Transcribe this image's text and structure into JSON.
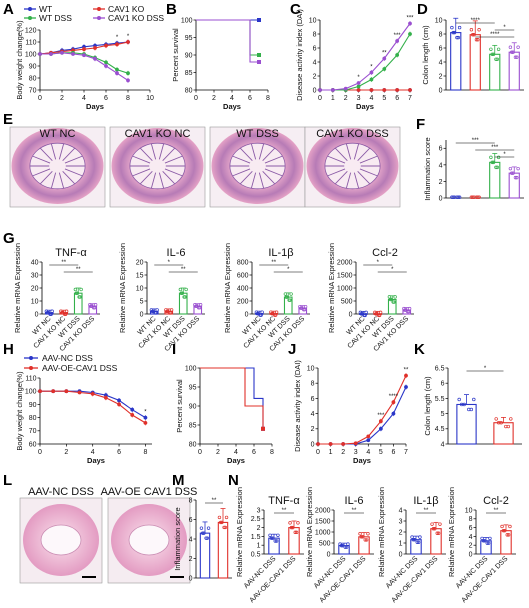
{
  "colors": {
    "wt": "#2a36c8",
    "cav1ko": "#e0302a",
    "wtdss": "#33b04a",
    "cav1kodss": "#9a4fd0",
    "aavnc": "#2a36c8",
    "aavoe": "#e0302a",
    "he_pink": "#e7a7c8",
    "he_purple": "#8a5aa6"
  },
  "panel_letters": {
    "A": "A",
    "B": "B",
    "C": "C",
    "D": "D",
    "E": "E",
    "F": "F",
    "G": "G",
    "H": "H",
    "I": "I",
    "J": "J",
    "K": "K",
    "L": "L",
    "M": "M",
    "N": "N"
  },
  "legend_top": {
    "wt": "WT",
    "wtdss": "WT DSS",
    "cav1ko": "CAV1 KO",
    "cav1kodss": "CAV1 KO DSS"
  },
  "legend_bottom": {
    "aavnc": "AAV-NC DSS",
    "aavoe": "AAV-OE-CAV1 DSS"
  },
  "histology_E": [
    "WT NC",
    "CAV1 KO NC",
    "WT DSS",
    "CAV1 KO DSS"
  ],
  "histology_L": [
    "AAV-NC DSS",
    "AAV-OE CAV1 DSS"
  ],
  "chart_data": [
    {
      "id": "A",
      "type": "line",
      "xlabel": "Days",
      "ylabel": "Body weight change(%)",
      "x": [
        0,
        1,
        2,
        3,
        4,
        5,
        6,
        7,
        8
      ],
      "xticks": [
        0,
        2,
        4,
        6,
        8,
        10
      ],
      "xlim": [
        0,
        10
      ],
      "yticks": [
        70,
        80,
        90,
        100,
        110,
        120
      ],
      "ylim": [
        70,
        120
      ],
      "significance": [
        "*",
        "*"
      ],
      "series": [
        {
          "name": "WT",
          "key": "wt",
          "values": [
            100,
            101,
            103,
            104,
            106,
            107,
            108,
            109,
            110
          ]
        },
        {
          "name": "CAV1 KO",
          "key": "cav1ko",
          "values": [
            100,
            101,
            102,
            103,
            104,
            105,
            107,
            108,
            110
          ]
        },
        {
          "name": "WT DSS",
          "key": "wtdss",
          "values": [
            100,
            100,
            101,
            101,
            100,
            97,
            93,
            87,
            84
          ]
        },
        {
          "name": "CAV1 KO DSS",
          "key": "cav1kodss",
          "values": [
            100,
            100,
            101,
            100,
            99,
            96,
            90,
            84,
            78
          ]
        }
      ]
    },
    {
      "id": "B",
      "type": "line",
      "xlabel": "Days",
      "ylabel": "Percent survival",
      "xticks": [
        0,
        2,
        4,
        6,
        8
      ],
      "xlim": [
        0,
        8
      ],
      "yticks": [
        80,
        85,
        90,
        95,
        100
      ],
      "ylim": [
        80,
        100
      ],
      "series": [
        {
          "key": "wt",
          "steps": [
            [
              0,
              100
            ],
            [
              7,
              100
            ]
          ]
        },
        {
          "key": "wtdss",
          "steps": [
            [
              0,
              100
            ],
            [
              6,
              100
            ],
            [
              6,
              90
            ],
            [
              7,
              90
            ]
          ]
        },
        {
          "key": "cav1kodss",
          "steps": [
            [
              0,
              100
            ],
            [
              6,
              100
            ],
            [
              6,
              88
            ],
            [
              7,
              88
            ]
          ]
        }
      ]
    },
    {
      "id": "C",
      "type": "line",
      "xlabel": "Days",
      "ylabel": "Disease activity index (DAI)",
      "x": [
        0,
        1,
        2,
        3,
        4,
        5,
        6,
        7
      ],
      "xticks": [
        0,
        1,
        2,
        3,
        4,
        5,
        6,
        7
      ],
      "xlim": [
        0,
        7
      ],
      "yticks": [
        0,
        2,
        4,
        6,
        8,
        10
      ],
      "ylim": [
        0,
        10
      ],
      "significance": [
        "*",
        "*",
        "**",
        "***",
        "***"
      ],
      "series": [
        {
          "key": "wt",
          "values": [
            0,
            0,
            0,
            0,
            0,
            0,
            0,
            0
          ]
        },
        {
          "key": "cav1ko",
          "values": [
            0,
            0,
            0,
            0,
            0,
            0,
            0,
            0
          ]
        },
        {
          "key": "wtdss",
          "values": [
            0,
            0,
            0,
            0.5,
            1.5,
            3,
            5,
            8
          ]
        },
        {
          "key": "cav1kodss",
          "values": [
            0,
            0,
            0.2,
            1,
            2.5,
            4.5,
            7,
            9.5
          ]
        }
      ]
    },
    {
      "id": "D",
      "type": "bar",
      "ylabel": "Colon length (cm)",
      "yticks": [
        0,
        2,
        4,
        6,
        8,
        10
      ],
      "ylim": [
        0,
        10
      ],
      "significance": [
        "****",
        "*",
        "****"
      ],
      "series": [
        {
          "key": "wt",
          "value": 8.2
        },
        {
          "key": "cav1ko",
          "value": 7.9
        },
        {
          "key": "wtdss",
          "value": 5.1
        },
        {
          "key": "cav1kodss",
          "value": 5.4
        }
      ]
    },
    {
      "id": "F",
      "type": "bar",
      "ylabel": "Inflammation score",
      "yticks": [
        0,
        2,
        4,
        6
      ],
      "ylim": [
        0,
        7
      ],
      "significance": [
        "***",
        "***",
        "*"
      ],
      "series": [
        {
          "key": "wt",
          "value": 0
        },
        {
          "key": "cav1ko",
          "value": 0
        },
        {
          "key": "wtdss",
          "value": 4.3
        },
        {
          "key": "cav1kodss",
          "value": 3.0
        }
      ]
    },
    {
      "id": "G1",
      "type": "bar",
      "title": "TNF-α",
      "ylabel": "Relative mRNA Expression",
      "categories": [
        "WT NC",
        "CAV1 KO NC",
        "WT DSS",
        "CAV1 KO DSS"
      ],
      "yticks": [
        0,
        10,
        20,
        30,
        40
      ],
      "ylim": [
        0,
        40
      ],
      "significance": [
        "**",
        "**"
      ],
      "values": [
        1,
        1,
        16,
        6
      ]
    },
    {
      "id": "G2",
      "type": "bar",
      "title": "IL-6",
      "ylabel": "Relative mRNA Expression",
      "categories": [
        "WT NC",
        "CAV1 KO NC",
        "WT DSS",
        "CAV1 KO DSS"
      ],
      "yticks": [
        0,
        5,
        10,
        15,
        20
      ],
      "ylim": [
        0,
        20
      ],
      "significance": [
        "*",
        "**"
      ],
      "values": [
        1,
        1,
        8,
        3
      ]
    },
    {
      "id": "G3",
      "type": "bar",
      "title": "IL-1β",
      "ylabel": "Relative mRNA Expression",
      "categories": [
        "WT NC",
        "CAV1 KO NC",
        "WT DSS",
        "CAV1 KO DSS"
      ],
      "yticks": [
        0,
        200,
        400,
        600,
        800
      ],
      "ylim": [
        0,
        800
      ],
      "significance": [
        "**",
        "*"
      ],
      "values": [
        5,
        5,
        260,
        90
      ]
    },
    {
      "id": "G4",
      "type": "bar",
      "title": "Ccl-2",
      "ylabel": "Relative mRNA Expression",
      "categories": [
        "WT NC",
        "CAV1 KO NC",
        "WT DSS",
        "CAV1 KO DSS"
      ],
      "yticks": [
        0,
        500,
        1000,
        1500,
        2000
      ],
      "ylim": [
        0,
        2000
      ],
      "significance": [
        "*",
        "*"
      ],
      "values": [
        5,
        5,
        560,
        150
      ]
    },
    {
      "id": "H",
      "type": "line",
      "xlabel": "Days",
      "ylabel": "Body weight change(%)",
      "x": [
        0,
        1,
        2,
        3,
        4,
        5,
        6,
        7,
        8
      ],
      "xticks": [
        0,
        2,
        4,
        6,
        8
      ],
      "xlim": [
        0,
        8.5
      ],
      "yticks": [
        60,
        70,
        80,
        90,
        100,
        110
      ],
      "ylim": [
        60,
        110
      ],
      "significance": [
        "*"
      ],
      "series": [
        {
          "name": "AAV-NC DSS",
          "key": "aavnc",
          "values": [
            100,
            100,
            100,
            100,
            99,
            97,
            93,
            86,
            80
          ]
        },
        {
          "name": "AAV-OE-CAV1 DSS",
          "key": "aavoe",
          "values": [
            100,
            100,
            100,
            99,
            98,
            95,
            90,
            82,
            76
          ]
        }
      ]
    },
    {
      "id": "I",
      "type": "line",
      "xlabel": "Days",
      "ylabel": "Percent survival",
      "xticks": [
        0,
        2,
        4,
        6,
        8
      ],
      "xlim": [
        0,
        8
      ],
      "yticks": [
        80,
        85,
        90,
        95,
        100
      ],
      "ylim": [
        80,
        100
      ],
      "series": [
        {
          "key": "aavnc",
          "steps": [
            [
              0,
              100
            ],
            [
              6,
              100
            ],
            [
              6,
              92
            ],
            [
              7,
              92
            ],
            [
              7,
              84
            ]
          ]
        },
        {
          "key": "aavoe",
          "steps": [
            [
              0,
              100
            ],
            [
              5,
              100
            ],
            [
              5,
              90
            ],
            [
              7,
              90
            ],
            [
              7,
              84
            ]
          ]
        }
      ]
    },
    {
      "id": "J",
      "type": "line",
      "xlabel": "Days",
      "ylabel": "Disease activity index (DAI)",
      "x": [
        0,
        1,
        2,
        3,
        4,
        5,
        6,
        7
      ],
      "xticks": [
        0,
        1,
        2,
        3,
        4,
        5,
        6,
        7
      ],
      "xlim": [
        0,
        7
      ],
      "yticks": [
        0,
        2,
        4,
        6,
        8,
        10
      ],
      "ylim": [
        0,
        10
      ],
      "significance": [
        "***",
        "****",
        "**"
      ],
      "series": [
        {
          "key": "aavnc",
          "values": [
            0,
            0,
            0,
            0,
            0.5,
            2,
            4,
            7.5
          ]
        },
        {
          "key": "aavoe",
          "values": [
            0,
            0,
            0,
            0.1,
            1,
            3,
            5.5,
            9
          ]
        }
      ]
    },
    {
      "id": "K",
      "type": "bar",
      "ylabel": "Colon length (cm)",
      "yticks": [
        4.0,
        4.5,
        5.0,
        5.5,
        6.0,
        6.5
      ],
      "ylim": [
        4.0,
        6.5
      ],
      "significance": [
        "*"
      ],
      "series": [
        {
          "key": "aavnc",
          "value": 5.3
        },
        {
          "key": "aavoe",
          "value": 4.7
        }
      ]
    },
    {
      "id": "M",
      "type": "bar",
      "ylabel": "Inflammation score",
      "yticks": [
        0,
        2,
        4,
        6,
        8
      ],
      "ylim": [
        0,
        8
      ],
      "significance": [
        "**"
      ],
      "series": [
        {
          "key": "aavnc",
          "value": 4.6
        },
        {
          "key": "aavoe",
          "value": 5.7
        }
      ]
    },
    {
      "id": "N1",
      "type": "bar",
      "title": "TNF-α",
      "ylabel": "Relative mRNA Expression",
      "categories": [
        "AAV-NC DSS",
        "AAV-OE-CAV1 DSS"
      ],
      "yticks": [
        0.5,
        1.0,
        1.5,
        2.0,
        2.5,
        3.0
      ],
      "ylim": [
        0.5,
        3.0
      ],
      "significance": [
        "**"
      ],
      "values": [
        1.4,
        2.0
      ]
    },
    {
      "id": "N2",
      "type": "bar",
      "title": "IL-6",
      "ylabel": "Relative mRNA Expression",
      "categories": [
        "AAV-NC DSS",
        "AAV-OE-CAV1 DSS"
      ],
      "yticks": [
        0,
        500,
        1000,
        1500,
        2000
      ],
      "ylim": [
        0,
        2000
      ],
      "significance": [
        "**"
      ],
      "values": [
        380,
        780
      ]
    },
    {
      "id": "N3",
      "type": "bar",
      "title": "IL-1β",
      "ylabel": "Relative mRNA Expression",
      "categories": [
        "AAV-NC DSS",
        "AAV-OE-CAV1 DSS"
      ],
      "yticks": [
        0,
        1,
        2,
        3,
        4
      ],
      "ylim": [
        0,
        4
      ],
      "significance": [
        "**"
      ],
      "values": [
        1.3,
        2.3
      ]
    },
    {
      "id": "N4",
      "type": "bar",
      "title": "Ccl-2",
      "ylabel": "Relative mRNA Expression",
      "categories": [
        "AAV-NC DSS",
        "AAV-OE-CAV1 DSS"
      ],
      "yticks": [
        0,
        2,
        4,
        6,
        8,
        10
      ],
      "ylim": [
        0,
        10
      ],
      "significance": [
        "**"
      ],
      "values": [
        3,
        5.3
      ]
    }
  ]
}
